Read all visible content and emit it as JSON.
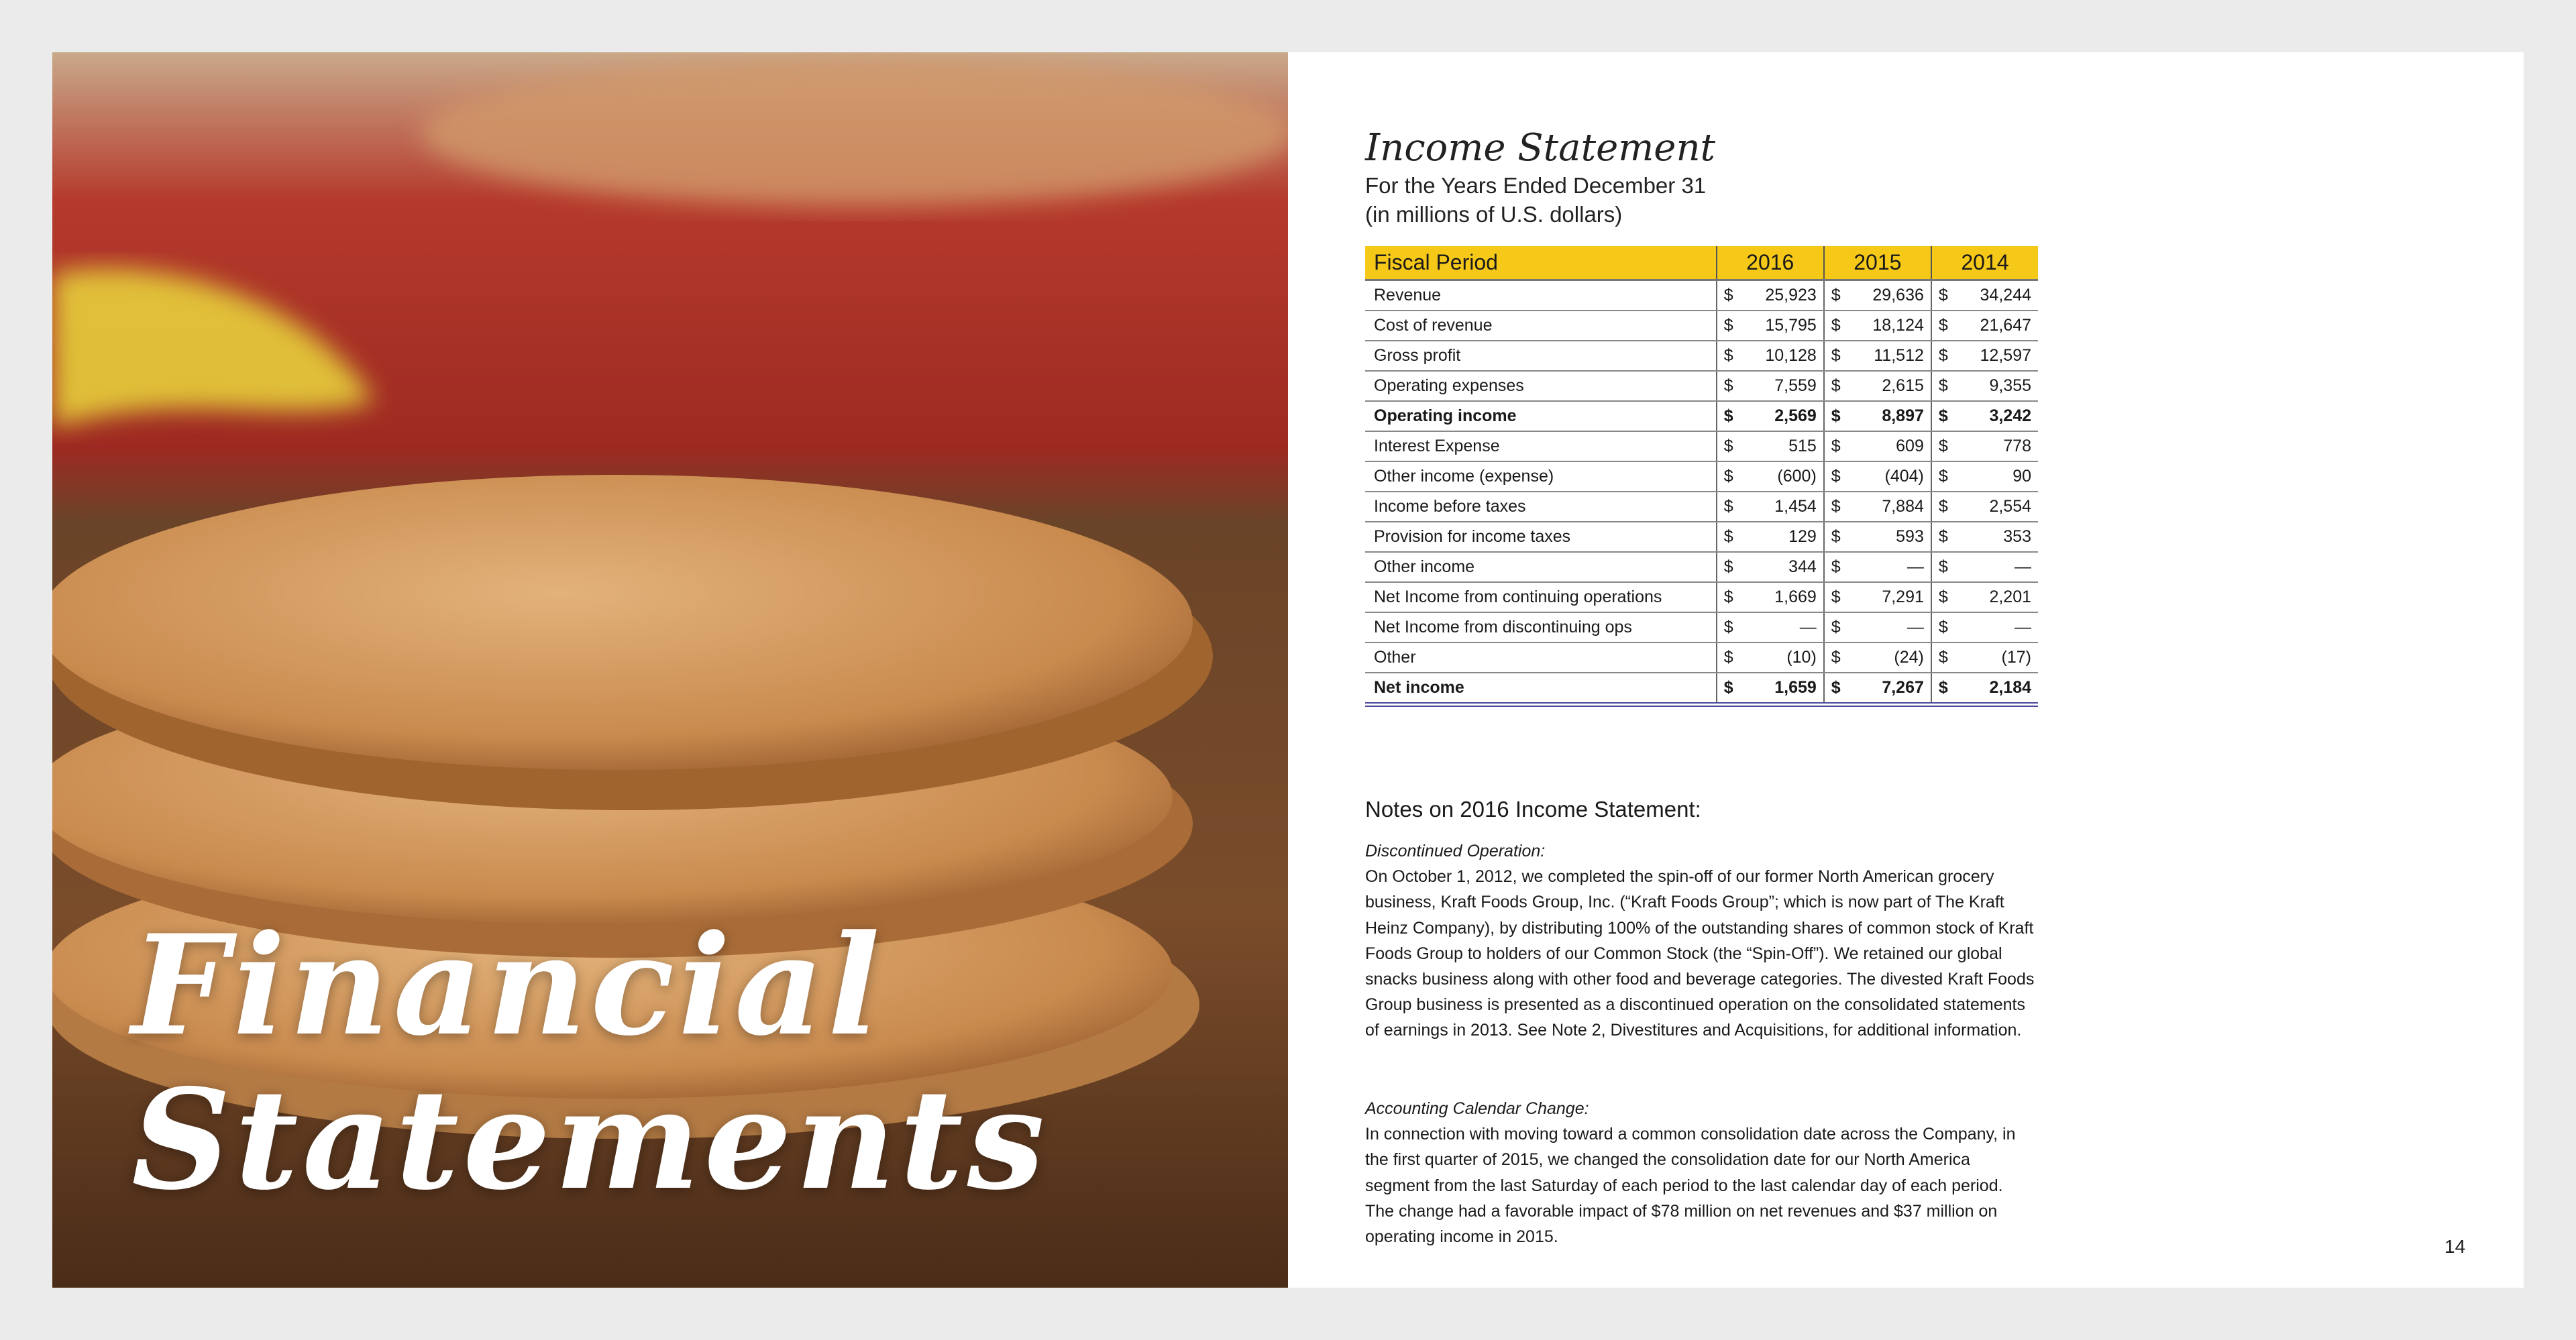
{
  "cover": {
    "title_line1": "Financial",
    "title_line2": "Statements"
  },
  "statement": {
    "title": "Income Statement",
    "subtitle1": "For the Years Ended December 31",
    "subtitle2": "(in millions of U.S. dollars)",
    "header": {
      "label": "Fiscal Period",
      "years": [
        "2016",
        "2015",
        "2014"
      ]
    },
    "currency": "$",
    "rows": [
      {
        "label": "Revenue",
        "values": [
          "25,923",
          "29,636",
          "34,244"
        ]
      },
      {
        "label": "Cost of revenue",
        "values": [
          "15,795",
          "18,124",
          "21,647"
        ]
      },
      {
        "label": "Gross profit",
        "values": [
          "10,128",
          "11,512",
          "12,597"
        ]
      },
      {
        "label": "Operating expenses",
        "values": [
          "7,559",
          "2,615",
          "9,355"
        ]
      },
      {
        "label": "Operating income",
        "values": [
          "2,569",
          "8,897",
          "3,242"
        ],
        "bold": true
      },
      {
        "label": "Interest Expense",
        "values": [
          "515",
          "609",
          "778"
        ]
      },
      {
        "label": "Other income (expense)",
        "values": [
          "(600)",
          "(404)",
          "90"
        ]
      },
      {
        "label": "Income before taxes",
        "values": [
          "1,454",
          "7,884",
          "2,554"
        ]
      },
      {
        "label": "Provision for income taxes",
        "values": [
          "129",
          "593",
          "353"
        ]
      },
      {
        "label": "Other income",
        "values": [
          "344",
          "—",
          "—"
        ]
      },
      {
        "label": "Net Income from continuing operations",
        "values": [
          "1,669",
          "7,291",
          "2,201"
        ]
      },
      {
        "label": "Net Income from discontinuing ops",
        "values": [
          "—",
          "—",
          "—"
        ]
      },
      {
        "label": "Other",
        "values": [
          "(10)",
          "(24)",
          "(17)"
        ]
      },
      {
        "label": "Net income",
        "values": [
          "1,659",
          "7,267",
          "2,184"
        ],
        "bold": true
      }
    ]
  },
  "notes": {
    "heading": "Notes on 2016 Income Statement:",
    "sections": [
      {
        "title": "Discontinued Operation:",
        "body": "On October 1, 2012, we completed the spin-off of our former North American grocery business, Kraft Foods Group, Inc. (“Kraft Foods Group”; which is now part of The Kraft Heinz Company), by distributing 100% of the outstanding shares of common stock of Kraft Foods Group to holders of our Common Stock (the “Spin-Off”). We retained our global snacks business along with other food and beverage categories. The divested Kraft Foods Group business is presented as a discontinued operation on the consolidated statements of earnings in 2013. See Note 2, Divestitures and Acquisitions, for additional information."
      },
      {
        "title": "Accounting Calendar Change:",
        "body": "In connection with moving toward a common consolidation date across the Company, in the first quarter of 2015, we changed the consolidation date for our North America segment from the last Saturday of each period to the last calendar day of each period. The change had a favorable impact of $78 million on net revenues and $37 million on operating income in 2015."
      }
    ]
  },
  "page_number": "14",
  "colors": {
    "header_yellow": "#f6c918",
    "background": "#ebebeb",
    "double_rule": "#4a4a9a"
  }
}
